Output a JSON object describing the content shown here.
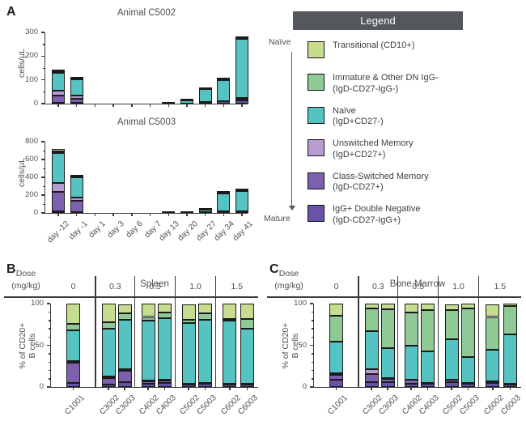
{
  "figure": {
    "panel_a_label": "A",
    "panel_b_label": "B",
    "panel_c_label": "C"
  },
  "legend": {
    "title": "Legend",
    "header_bg": "#54585c",
    "axis_top_label": "Naïve",
    "axis_bottom_label": "Mature",
    "items": [
      {
        "line1": "Transitional  (CD10+)",
        "line2": "",
        "color": "#c6dc8f"
      },
      {
        "line1": "Immature & Other DN IgG-",
        "line2": "(IgD-CD27-IgG-)",
        "color": "#8fc996"
      },
      {
        "line1": "Naïve",
        "line2": "(IgD+CD27-)",
        "color": "#54c3c1"
      },
      {
        "line1": "Unswitched Memory",
        "line2": "(IgD+CD27+)",
        "color": "#b79bd1"
      },
      {
        "line1": "Class-Switched Memory",
        "line2": "(IgD-CD27+)",
        "color": "#7d60ae"
      },
      {
        "line1": "IgG+ Double Negative",
        "line2": "(IgD-CD27-IgG+)",
        "color": "#6a52a8"
      }
    ]
  },
  "chart_data": [
    {
      "id": "A1",
      "type": "bar",
      "stacked": true,
      "layout": "uniform",
      "title": "Animal C5002",
      "ylabel": "cells/μL",
      "ylim": [
        0,
        300
      ],
      "yticks": [
        0,
        100,
        200,
        300
      ],
      "minor_step": 50,
      "show_xlabels": false,
      "categories": [
        "day -12",
        "day -1",
        "day 1",
        "day 3",
        "day 6",
        "day 7",
        "day 13",
        "day 20",
        "day 27",
        "day 34",
        "day 41"
      ],
      "series": [
        {
          "name": "IgG+ Double Negative",
          "color": "#6a52a8",
          "values": [
            5,
            4,
            0,
            0,
            0,
            0,
            1,
            1,
            8,
            10,
            12
          ]
        },
        {
          "name": "Class-Switched Memory",
          "color": "#7d60ae",
          "values": [
            28,
            18,
            0,
            0,
            0,
            0,
            0,
            0,
            0,
            0,
            5
          ]
        },
        {
          "name": "Unswitched Memory",
          "color": "#b79bd1",
          "values": [
            22,
            11,
            0,
            0,
            0,
            0,
            0,
            0,
            0,
            0,
            6
          ]
        },
        {
          "name": "Naïve",
          "color": "#54c3c1",
          "values": [
            75,
            70,
            0,
            0,
            0,
            0,
            3,
            13,
            52,
            88,
            250
          ]
        },
        {
          "name": "Immature & Other DN IgG-",
          "color": "#8fc996",
          "values": [
            5,
            3,
            0,
            0,
            0,
            0,
            0,
            0,
            2,
            4,
            4
          ]
        },
        {
          "name": "Transitional (CD10+)",
          "color": "#c6dc8f",
          "values": [
            7,
            4,
            0,
            0,
            0,
            0,
            0,
            1,
            3,
            3,
            3
          ]
        }
      ]
    },
    {
      "id": "A2",
      "type": "bar",
      "stacked": true,
      "layout": "uniform",
      "title": "Animal C5003",
      "ylabel": "cells/μL",
      "ylim": [
        0,
        800
      ],
      "yticks": [
        0,
        200,
        400,
        600,
        800
      ],
      "minor_step": 100,
      "show_xlabels": true,
      "categories": [
        "day -12",
        "day -1",
        "day 1",
        "day 3",
        "day 6",
        "day 7",
        "day 13",
        "day 20",
        "day 27",
        "day 34",
        "day 41"
      ],
      "series": [
        {
          "name": "IgG+ Double Negative",
          "color": "#6a52a8",
          "values": [
            15,
            10,
            0,
            0,
            0,
            0,
            3,
            3,
            5,
            15,
            20
          ]
        },
        {
          "name": "Class-Switched Memory",
          "color": "#7d60ae",
          "values": [
            220,
            125,
            0,
            0,
            0,
            0,
            0,
            0,
            0,
            0,
            0
          ]
        },
        {
          "name": "Unswitched Memory",
          "color": "#b79bd1",
          "values": [
            105,
            40,
            0,
            0,
            0,
            0,
            0,
            0,
            0,
            0,
            0
          ]
        },
        {
          "name": "Naïve",
          "color": "#54c3c1",
          "values": [
            330,
            225,
            0,
            0,
            0,
            0,
            2,
            2,
            33,
            200,
            230
          ]
        },
        {
          "name": "Immature & Other DN IgG-",
          "color": "#8fc996",
          "values": [
            20,
            10,
            0,
            0,
            0,
            0,
            0,
            0,
            0,
            15,
            5
          ]
        },
        {
          "name": "Transitional (CD10+)",
          "color": "#c6dc8f",
          "values": [
            30,
            10,
            0,
            0,
            0,
            0,
            0,
            0,
            2,
            10,
            5
          ]
        }
      ]
    },
    {
      "id": "B",
      "type": "bar",
      "stacked": true,
      "layout": "grouped",
      "title": "Spleen",
      "ylabel": "% of CD20+\nB cells",
      "ylim": [
        0,
        100
      ],
      "yticks": [
        0,
        50,
        100
      ],
      "minor_step": 10,
      "show_xlabels": true,
      "dose_header": {
        "label_line1": "Dose",
        "label_line2": "(mg/kg)",
        "values": [
          "0",
          "0.3",
          "0.5",
          "1.0",
          "1.5"
        ]
      },
      "group_counts": [
        1,
        2,
        2,
        2,
        2
      ],
      "categories": [
        "C1001",
        "C3002",
        "C3003",
        "C4002",
        "C4003",
        "C5002",
        "C5003",
        "C6002",
        "C6003"
      ],
      "series": [
        {
          "name": "IgG+ Double Negative",
          "color": "#6a52a8",
          "values": [
            5,
            3,
            6,
            4,
            5,
            3,
            4,
            3,
            3
          ]
        },
        {
          "name": "Class-Switched Memory",
          "color": "#7d60ae",
          "values": [
            24,
            8,
            13,
            3,
            3,
            1,
            1,
            1,
            1
          ]
        },
        {
          "name": "Unswitched Memory",
          "color": "#b79bd1",
          "values": [
            2,
            2,
            2,
            1,
            1,
            0,
            0,
            0,
            0
          ]
        },
        {
          "name": "Naïve",
          "color": "#54c3c1",
          "values": [
            37,
            57,
            60,
            72,
            74,
            73,
            76,
            76,
            66
          ]
        },
        {
          "name": "Immature & Other DN IgG-",
          "color": "#8fc996",
          "values": [
            8,
            8,
            7,
            4,
            6,
            4,
            7,
            2,
            12
          ]
        },
        {
          "name": "Transitional (CD10+)",
          "color": "#c6dc8f",
          "values": [
            24,
            22,
            11,
            16,
            11,
            18,
            12,
            18,
            18
          ]
        }
      ]
    },
    {
      "id": "C",
      "type": "bar",
      "stacked": true,
      "layout": "grouped",
      "title": "Bone Marrow",
      "ylabel": "% of CD20+\nB cells",
      "ylim": [
        0,
        100
      ],
      "yticks": [
        0,
        50,
        100
      ],
      "minor_step": 10,
      "show_xlabels": true,
      "dose_header": {
        "label_line1": "Dose",
        "label_line2": "(mg/kg)",
        "values": [
          "0",
          "0.3",
          "0.5",
          "1.0",
          "1.5"
        ]
      },
      "group_counts": [
        1,
        2,
        2,
        2,
        2
      ],
      "categories": [
        "C1001",
        "C3002",
        "C3003",
        "C4002",
        "C4003",
        "C5002",
        "C5003",
        "C6002",
        "C6003"
      ],
      "series": [
        {
          "name": "IgG+ Double Negative",
          "color": "#6a52a8",
          "values": [
            9,
            6,
            6,
            4,
            4,
            6,
            4,
            5,
            3
          ]
        },
        {
          "name": "Class-Switched Memory",
          "color": "#7d60ae",
          "values": [
            6,
            10,
            4,
            5,
            1,
            3,
            1,
            2,
            1
          ]
        },
        {
          "name": "Unswitched Memory",
          "color": "#b79bd1",
          "values": [
            2,
            5,
            1,
            0,
            0,
            0,
            0,
            0,
            0
          ]
        },
        {
          "name": "Naïve",
          "color": "#54c3c1",
          "values": [
            37,
            46,
            36,
            41,
            38,
            48,
            31,
            38,
            59
          ]
        },
        {
          "name": "Immature & Other DN IgG-",
          "color": "#8fc996",
          "values": [
            31,
            27,
            46,
            39,
            49,
            35,
            58,
            39,
            34
          ]
        },
        {
          "name": "Transitional (CD10+)",
          "color": "#c6dc8f",
          "values": [
            15,
            6,
            7,
            11,
            8,
            7,
            6,
            15,
            3
          ]
        }
      ]
    }
  ]
}
